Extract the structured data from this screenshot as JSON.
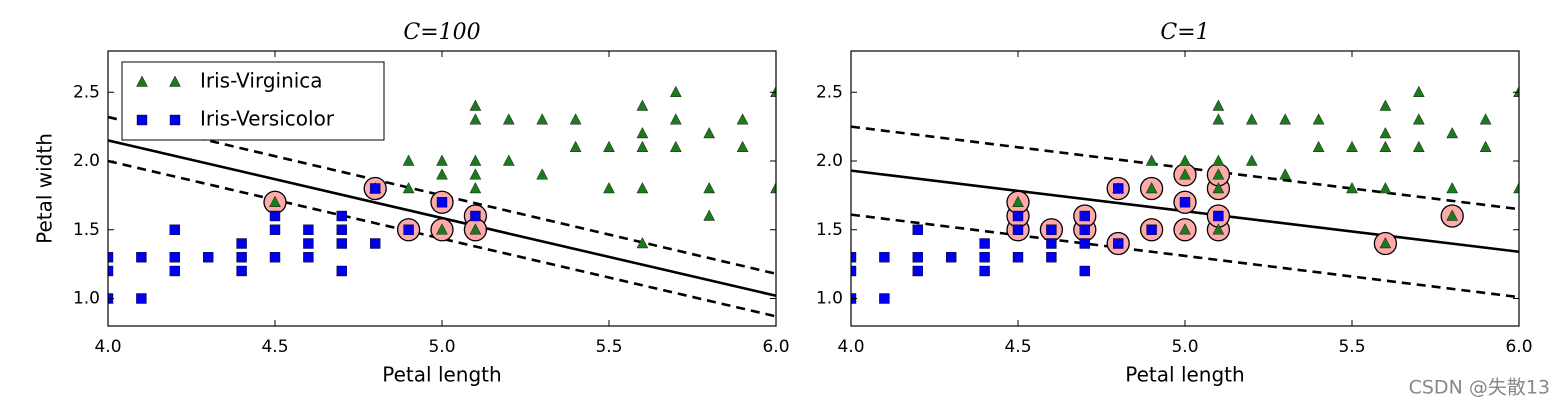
{
  "chart_data": [
    {
      "type": "scatter",
      "title": "C=100",
      "xlabel": "Petal length",
      "ylabel": "Petal width",
      "xlim": [
        4.0,
        6.0
      ],
      "ylim": [
        0.8,
        2.8
      ],
      "xticks": [
        {
          "value": 4.0,
          "label": "4.0"
        },
        {
          "value": 4.5,
          "label": "4.5"
        },
        {
          "value": 5.0,
          "label": "5.0"
        },
        {
          "value": 5.5,
          "label": "5.5"
        },
        {
          "value": 6.0,
          "label": "6.0"
        }
      ],
      "yticks": [
        {
          "value": 1.0,
          "label": "1.0"
        },
        {
          "value": 1.5,
          "label": "1.5"
        },
        {
          "value": 2.0,
          "label": "2.0"
        },
        {
          "value": 2.5,
          "label": "2.5"
        }
      ],
      "legend": "upper left",
      "support_vectors": {
        "color": "#ffaaaa",
        "x": [
          4.5,
          4.8,
          4.9,
          5.0,
          5.0,
          5.1,
          5.1
        ],
        "y": [
          1.7,
          1.8,
          1.5,
          1.7,
          1.5,
          1.6,
          1.5
        ]
      },
      "series": [
        {
          "name": "Iris-Virginica",
          "color": "#1c7a1c",
          "marker": "triangle",
          "x": [
            4.5,
            4.8,
            4.9,
            4.9,
            5.0,
            5.0,
            5.0,
            5.1,
            5.1,
            5.1,
            5.1,
            5.1,
            5.1,
            5.2,
            5.2,
            5.3,
            5.3,
            5.4,
            5.4,
            5.5,
            5.5,
            5.6,
            5.6,
            5.6,
            5.6,
            5.6,
            5.7,
            5.7,
            5.7,
            5.8,
            5.8,
            5.8,
            5.9,
            5.9,
            6.0,
            6.0
          ],
          "y": [
            1.7,
            1.8,
            1.8,
            2.0,
            1.5,
            1.9,
            2.0,
            1.5,
            1.8,
            1.9,
            2.0,
            2.3,
            2.4,
            2.0,
            2.3,
            1.9,
            2.3,
            2.1,
            2.3,
            1.8,
            2.1,
            1.4,
            1.8,
            2.1,
            2.2,
            2.4,
            2.1,
            2.3,
            2.5,
            1.6,
            1.8,
            2.2,
            2.1,
            2.3,
            1.8,
            2.5
          ]
        },
        {
          "name": "Iris-Versicolor",
          "color": "#0000ee",
          "marker": "square",
          "x": [
            4.0,
            4.0,
            4.0,
            4.1,
            4.1,
            4.2,
            4.2,
            4.2,
            4.3,
            4.4,
            4.4,
            4.4,
            4.5,
            4.5,
            4.5,
            4.6,
            4.6,
            4.6,
            4.7,
            4.7,
            4.7,
            4.7,
            4.8,
            4.8,
            4.9,
            5.0,
            5.1
          ],
          "y": [
            1.0,
            1.2,
            1.3,
            1.0,
            1.3,
            1.2,
            1.3,
            1.5,
            1.3,
            1.2,
            1.3,
            1.4,
            1.3,
            1.5,
            1.6,
            1.3,
            1.4,
            1.5,
            1.2,
            1.4,
            1.5,
            1.6,
            1.4,
            1.8,
            1.5,
            1.7,
            1.6
          ]
        }
      ],
      "lines": [
        {
          "style": "solid",
          "x": [
            4.0,
            6.0
          ],
          "y": [
            2.15,
            1.02
          ]
        },
        {
          "style": "dashed",
          "x": [
            4.0,
            6.0
          ],
          "y": [
            2.32,
            1.18
          ]
        },
        {
          "style": "dashed",
          "x": [
            4.0,
            6.0
          ],
          "y": [
            2.0,
            0.87
          ]
        }
      ]
    },
    {
      "type": "scatter",
      "title": "C=1",
      "xlabel": "Petal length",
      "xlim": [
        4.0,
        6.0
      ],
      "ylim": [
        0.8,
        2.8
      ],
      "xticks": [
        {
          "value": 4.0,
          "label": "4.0"
        },
        {
          "value": 4.5,
          "label": "4.5"
        },
        {
          "value": 5.0,
          "label": "5.0"
        },
        {
          "value": 5.5,
          "label": "5.5"
        },
        {
          "value": 6.0,
          "label": "6.0"
        }
      ],
      "yticks": [
        {
          "value": 1.0,
          "label": "1.0"
        },
        {
          "value": 1.5,
          "label": "1.5"
        },
        {
          "value": 2.0,
          "label": "2.0"
        },
        {
          "value": 2.5,
          "label": "2.5"
        }
      ],
      "support_vectors": {
        "color": "#ffaaaa",
        "x": [
          4.5,
          4.5,
          4.5,
          4.6,
          4.7,
          4.7,
          4.8,
          4.8,
          4.9,
          4.9,
          5.0,
          5.0,
          5.0,
          5.1,
          5.1,
          5.1,
          5.1,
          5.6,
          5.8
        ],
        "y": [
          1.5,
          1.6,
          1.7,
          1.5,
          1.5,
          1.6,
          1.4,
          1.8,
          1.5,
          1.8,
          1.5,
          1.7,
          1.9,
          1.5,
          1.6,
          1.8,
          1.9,
          1.4,
          1.6
        ]
      },
      "series": [
        {
          "color": "#1c7a1c",
          "marker": "triangle",
          "x": [
            4.5,
            4.8,
            4.9,
            4.9,
            5.0,
            5.0,
            5.0,
            5.1,
            5.1,
            5.1,
            5.1,
            5.1,
            5.1,
            5.2,
            5.2,
            5.3,
            5.3,
            5.4,
            5.4,
            5.5,
            5.5,
            5.6,
            5.6,
            5.6,
            5.6,
            5.6,
            5.7,
            5.7,
            5.7,
            5.8,
            5.8,
            5.8,
            5.9,
            5.9,
            6.0,
            6.0
          ],
          "y": [
            1.7,
            1.8,
            1.8,
            2.0,
            1.5,
            1.9,
            2.0,
            1.5,
            1.8,
            1.9,
            2.0,
            2.3,
            2.4,
            2.0,
            2.3,
            1.9,
            2.3,
            2.1,
            2.3,
            1.8,
            2.1,
            1.4,
            1.8,
            2.1,
            2.2,
            2.4,
            2.1,
            2.3,
            2.5,
            1.6,
            1.8,
            2.2,
            2.1,
            2.3,
            1.8,
            2.5
          ]
        },
        {
          "color": "#0000ee",
          "marker": "square",
          "x": [
            4.0,
            4.0,
            4.0,
            4.1,
            4.1,
            4.2,
            4.2,
            4.2,
            4.3,
            4.4,
            4.4,
            4.4,
            4.5,
            4.5,
            4.5,
            4.6,
            4.6,
            4.6,
            4.7,
            4.7,
            4.7,
            4.7,
            4.8,
            4.8,
            4.9,
            5.0,
            5.1
          ],
          "y": [
            1.0,
            1.2,
            1.3,
            1.0,
            1.3,
            1.2,
            1.3,
            1.5,
            1.3,
            1.2,
            1.3,
            1.4,
            1.3,
            1.5,
            1.6,
            1.3,
            1.4,
            1.5,
            1.2,
            1.4,
            1.5,
            1.6,
            1.4,
            1.8,
            1.5,
            1.7,
            1.6
          ]
        }
      ],
      "lines": [
        {
          "style": "solid",
          "x": [
            4.0,
            6.0
          ],
          "y": [
            1.93,
            1.34
          ]
        },
        {
          "style": "dashed",
          "x": [
            4.0,
            6.0
          ],
          "y": [
            2.25,
            1.65
          ]
        },
        {
          "style": "dashed",
          "x": [
            4.0,
            6.0
          ],
          "y": [
            1.61,
            1.01
          ]
        }
      ]
    }
  ],
  "watermark": "CSDN @失散13"
}
